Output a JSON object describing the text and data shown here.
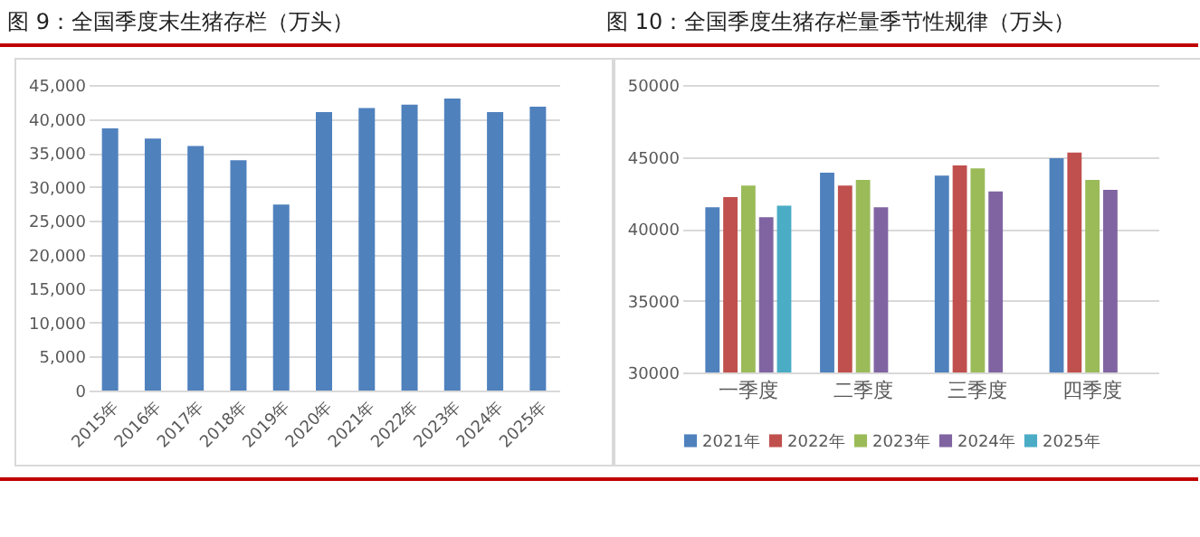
{
  "chart_data": [
    {
      "type": "bar",
      "title": "图 9：全国季度末生猪存栏（万头）",
      "categories": [
        "2015年",
        "2016年",
        "2017年",
        "2018年",
        "2019年",
        "2020年",
        "2021年",
        "2022年",
        "2023年",
        "2024年",
        "2025年"
      ],
      "values": [
        38600,
        37100,
        36000,
        33900,
        27400,
        41000,
        41600,
        42100,
        43000,
        41000,
        41800
      ],
      "color": "#4f81bd",
      "ylim": [
        0,
        45000
      ],
      "yticks": [
        {
          "value": 0,
          "label": "0"
        },
        {
          "value": 5000,
          "label": "5,000"
        },
        {
          "value": 10000,
          "label": "10,000"
        },
        {
          "value": 15000,
          "label": "15,000"
        },
        {
          "value": 20000,
          "label": "20,000"
        },
        {
          "value": 25000,
          "label": "25,000"
        },
        {
          "value": 30000,
          "label": "30,000"
        },
        {
          "value": 35000,
          "label": "35,000"
        },
        {
          "value": 40000,
          "label": "40,000"
        },
        {
          "value": 45000,
          "label": "45,000"
        }
      ],
      "grid": "y",
      "legend": false
    },
    {
      "type": "bar",
      "title": "图 10：全国季度生猪存栏量季节性规律（万头）",
      "categories": [
        "一季度",
        "二季度",
        "三季度",
        "四季度"
      ],
      "series": [
        {
          "name": "2021年",
          "color": "#4f81bd",
          "values": [
            41500,
            43900,
            43700,
            44900
          ]
        },
        {
          "name": "2022年",
          "color": "#c0504d",
          "values": [
            42200,
            43000,
            44400,
            45300
          ]
        },
        {
          "name": "2023年",
          "color": "#9bbb59",
          "values": [
            43000,
            43400,
            44200,
            43400
          ]
        },
        {
          "name": "2024年",
          "color": "#8064a2",
          "values": [
            40800,
            41500,
            42600,
            42700
          ]
        },
        {
          "name": "2025年",
          "color": "#4bacc6",
          "values": [
            41600,
            null,
            null,
            null
          ]
        }
      ],
      "ylim": [
        30000,
        50000
      ],
      "yticks": [
        30000,
        35000,
        40000,
        45000,
        50000
      ],
      "grid": "y",
      "legend": "bottom"
    }
  ]
}
